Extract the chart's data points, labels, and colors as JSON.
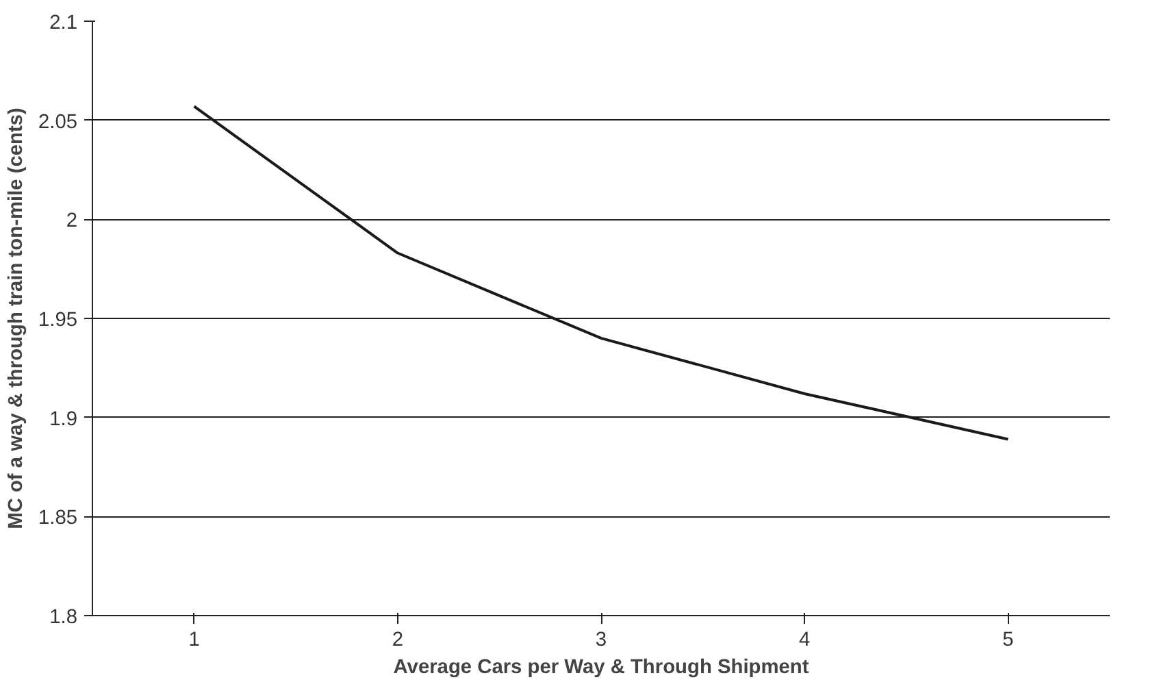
{
  "chart_data": {
    "type": "line",
    "xlabel": "Average Cars per Way & Through Shipment",
    "ylabel": "MC of a way & through train ton-mile (cents)",
    "categories": [
      "1",
      "2",
      "3",
      "4",
      "5"
    ],
    "series": [
      {
        "color": "#1a1a1a",
        "values": [
          2.057,
          1.983,
          1.94,
          1.912,
          1.889
        ]
      }
    ],
    "ylim": [
      1.8,
      2.1
    ],
    "yticks": [
      1.8,
      1.85,
      1.9,
      1.95,
      2,
      2.05,
      2.1
    ],
    "grid": "y",
    "marker": "none",
    "line_style": "solid"
  }
}
